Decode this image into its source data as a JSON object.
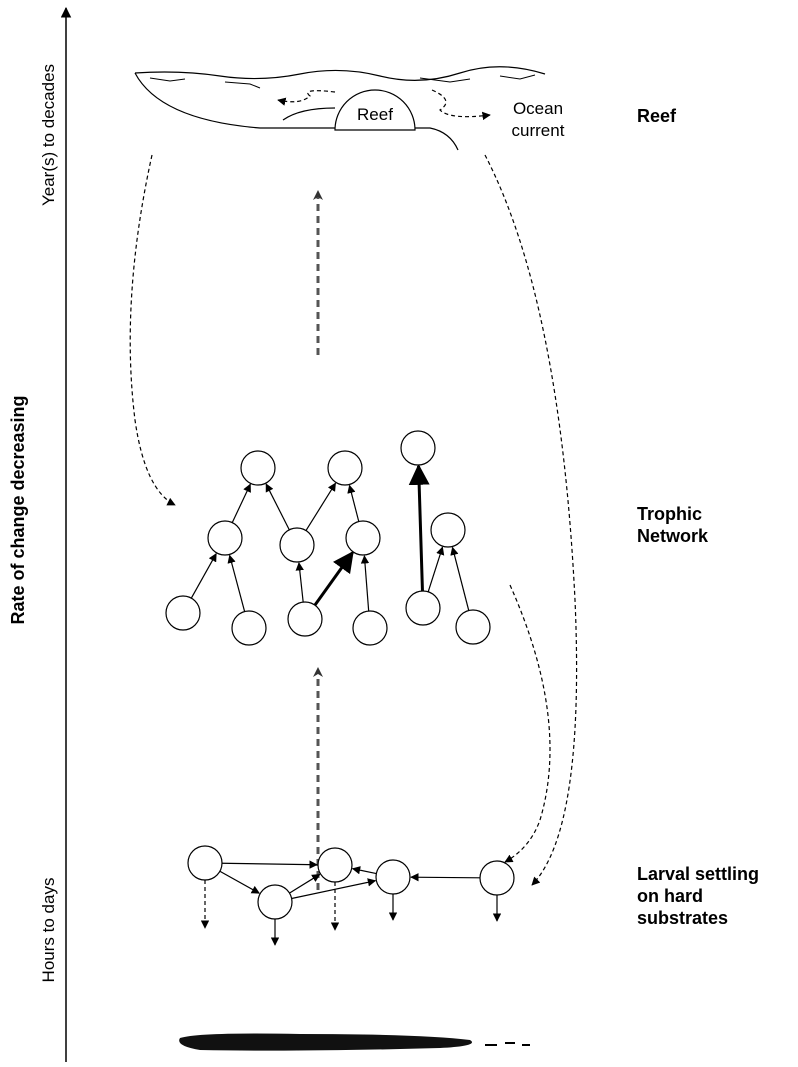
{
  "axis": {
    "top_label": "Year(s) to decades",
    "title": "Rate of change decreasing",
    "bottom_label": "Hours to days"
  },
  "reef_scene": {
    "reef_label": "Reef",
    "current_label": [
      "Ocean",
      "current"
    ]
  },
  "levels": [
    {
      "label": [
        "Reef"
      ]
    },
    {
      "label": [
        "Trophic",
        "Network"
      ]
    },
    {
      "label": [
        "Larval settling",
        "on hard",
        "substrates"
      ]
    }
  ]
}
